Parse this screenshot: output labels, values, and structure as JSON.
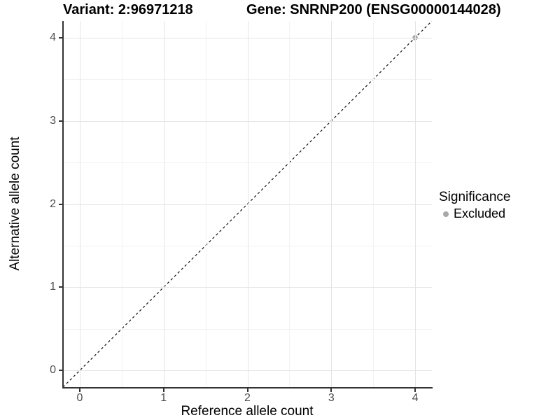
{
  "titles": {
    "variant": "Variant: 2:96971218",
    "gene": "Gene: SNRNP200 (ENSG00000144028)"
  },
  "chart_data": {
    "type": "scatter",
    "title": "Variant: 2:96971218   Gene: SNRNP200 (ENSG00000144028)",
    "xlabel": "Reference allele count",
    "ylabel": "Alternative allele count",
    "xlim": [
      -0.2,
      4.2
    ],
    "ylim": [
      -0.2,
      4.2
    ],
    "x_ticks": [
      0,
      1,
      2,
      3,
      4
    ],
    "y_ticks": [
      0,
      1,
      2,
      3,
      4
    ],
    "x_minor_ticks": [
      0.5,
      1.5,
      2.5,
      3.5
    ],
    "y_minor_ticks": [
      0.5,
      1.5,
      2.5,
      3.5
    ],
    "grid": true,
    "series": [
      {
        "name": "Excluded",
        "color": "#a8a8a8",
        "points": [
          {
            "x": 4,
            "y": 4
          }
        ]
      }
    ],
    "reference_line": {
      "name": "identity y=x",
      "style": "dashed",
      "from": [
        -0.2,
        -0.2
      ],
      "to": [
        4.2,
        4.2
      ],
      "color": "#111111"
    },
    "legend": {
      "title": "Significance",
      "position": "right",
      "items": [
        {
          "label": "Excluded",
          "color": "#a8a8a8"
        }
      ]
    }
  },
  "colors": {
    "background": "#ffffff",
    "grid_major": "#e4e4e4",
    "grid_minor": "#f2f2f2",
    "axis_line": "#333333",
    "tick_label": "#4d4d4d",
    "title_text": "#000000",
    "point_excluded": "#a8a8a8"
  }
}
